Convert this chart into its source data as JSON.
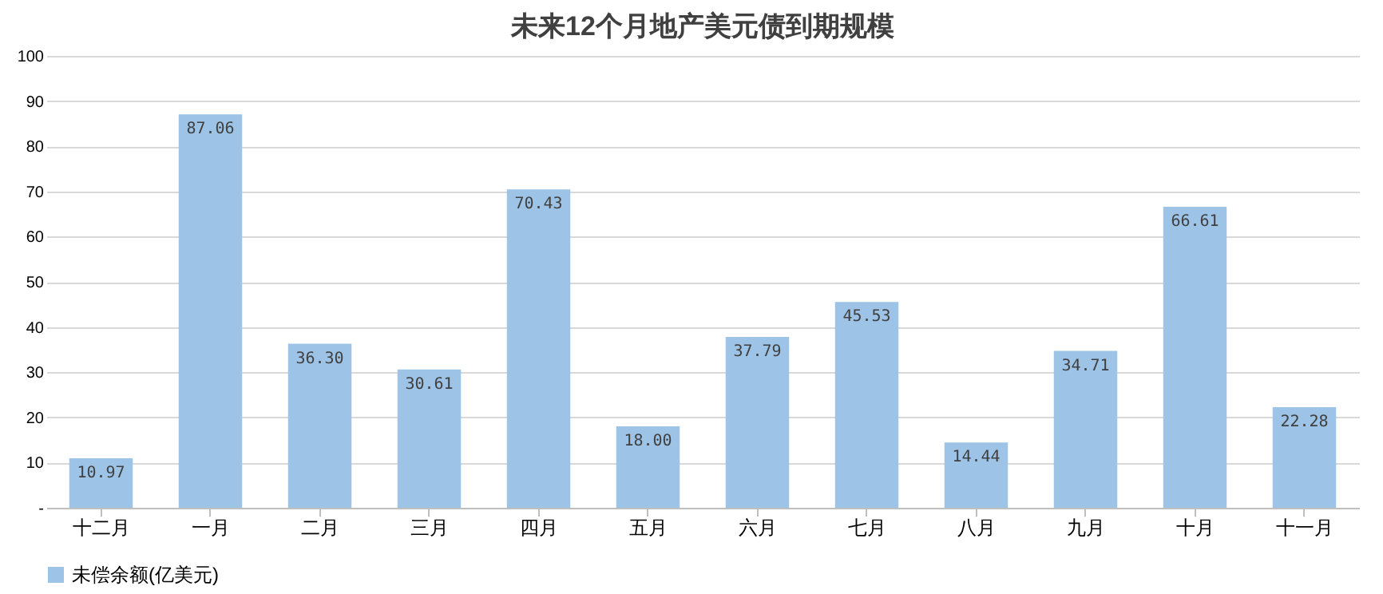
{
  "chart_data": {
    "type": "bar",
    "title": "未来12个月地产美元债到期规模",
    "categories": [
      "十二月",
      "一月",
      "二月",
      "三月",
      "四月",
      "五月",
      "六月",
      "七月",
      "八月",
      "九月",
      "十月",
      "十一月"
    ],
    "series": [
      {
        "name": "未偿余额(亿美元)",
        "color": "#9dc3e6",
        "values": [
          10.97,
          87.06,
          36.3,
          30.61,
          70.43,
          18.0,
          37.79,
          45.53,
          14.44,
          34.71,
          66.61,
          22.28
        ],
        "value_labels": [
          "10.97",
          "87.06",
          "36.30",
          "30.61",
          "70.43",
          "18.00",
          "37.79",
          "45.53",
          "14.44",
          "34.71",
          "66.61",
          "22.28"
        ]
      }
    ],
    "ylim": [
      0,
      100
    ],
    "yticks": [
      {
        "value": 0,
        "label": "-"
      },
      10,
      20,
      30,
      40,
      50,
      60,
      70,
      80,
      90,
      100
    ],
    "grid": "y",
    "legend": "bottom"
  }
}
